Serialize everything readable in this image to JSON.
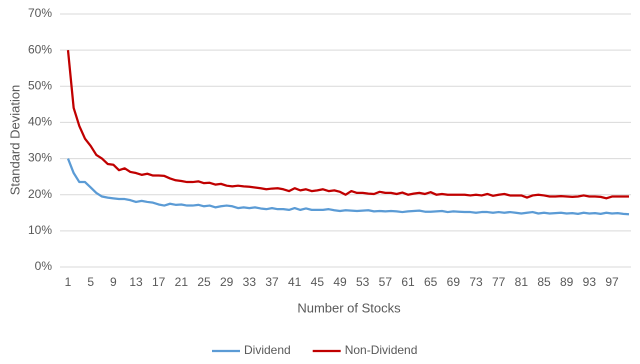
{
  "chart_data": {
    "type": "line",
    "x_label": "Number of Stocks",
    "y_label": "Standard Deviation",
    "x": [
      1,
      2,
      3,
      4,
      5,
      6,
      7,
      8,
      9,
      10,
      11,
      12,
      13,
      14,
      15,
      16,
      17,
      18,
      19,
      20,
      21,
      22,
      23,
      24,
      25,
      26,
      27,
      28,
      29,
      30,
      31,
      32,
      33,
      34,
      35,
      36,
      37,
      38,
      39,
      40,
      41,
      42,
      43,
      44,
      45,
      46,
      47,
      48,
      49,
      50,
      51,
      52,
      53,
      54,
      55,
      56,
      57,
      58,
      59,
      60,
      61,
      62,
      63,
      64,
      65,
      66,
      67,
      68,
      69,
      70,
      71,
      72,
      73,
      74,
      75,
      76,
      77,
      78,
      79,
      80,
      81,
      82,
      83,
      84,
      85,
      86,
      87,
      88,
      89,
      90,
      91,
      92,
      93,
      94,
      95,
      96,
      97,
      98,
      99,
      100
    ],
    "xlim": [
      1,
      100
    ],
    "xticks": [
      1,
      5,
      9,
      13,
      17,
      21,
      25,
      29,
      33,
      37,
      41,
      45,
      49,
      53,
      57,
      61,
      65,
      69,
      73,
      77,
      81,
      85,
      89,
      93,
      97
    ],
    "ylim": [
      0,
      70
    ],
    "yticks": [
      {
        "value": 0,
        "label": "0%"
      },
      {
        "value": 10,
        "label": "10%"
      },
      {
        "value": 20,
        "label": "20%"
      },
      {
        "value": 30,
        "label": "30%"
      },
      {
        "value": 40,
        "label": "40%"
      },
      {
        "value": 50,
        "label": "50%"
      },
      {
        "value": 60,
        "label": "60%"
      },
      {
        "value": 70,
        "label": "70%"
      }
    ],
    "grid": true,
    "legend": "bottom",
    "series": [
      {
        "name": "Dividend",
        "color": "#5b9bd5",
        "values": [
          30,
          26,
          23.5,
          23.5,
          22,
          20.5,
          19.5,
          19.2,
          19,
          18.8,
          18.8,
          18.5,
          18,
          18.3,
          18,
          17.8,
          17.3,
          17,
          17.5,
          17.2,
          17.3,
          17,
          17,
          17.2,
          16.8,
          17,
          16.5,
          16.8,
          17,
          16.8,
          16.3,
          16.5,
          16.3,
          16.5,
          16.2,
          16,
          16.3,
          16,
          16,
          15.8,
          16.3,
          15.8,
          16.2,
          15.8,
          15.8,
          15.8,
          16,
          15.7,
          15.5,
          15.7,
          15.6,
          15.5,
          15.6,
          15.7,
          15.4,
          15.5,
          15.4,
          15.5,
          15.4,
          15.2,
          15.4,
          15.5,
          15.6,
          15.3,
          15.3,
          15.4,
          15.5,
          15.2,
          15.4,
          15.3,
          15.2,
          15.2,
          15,
          15.2,
          15.2,
          15,
          15.2,
          15,
          15.2,
          15,
          14.8,
          15,
          15.2,
          14.8,
          15,
          14.8,
          14.9,
          15,
          14.8,
          14.9,
          14.7,
          15,
          14.8,
          14.9,
          14.7,
          15,
          14.8,
          14.9,
          14.7,
          14.6
        ]
      },
      {
        "name": "Non-Dividend",
        "color": "#c00000",
        "values": [
          60,
          44,
          39,
          35.5,
          33.5,
          31,
          30,
          28.5,
          28.3,
          26.8,
          27.3,
          26.3,
          26,
          25.5,
          25.8,
          25.3,
          25.3,
          25.2,
          24.5,
          24,
          23.8,
          23.5,
          23.5,
          23.7,
          23.2,
          23.3,
          22.8,
          23,
          22.5,
          22.3,
          22.5,
          22.3,
          22.2,
          22,
          21.8,
          21.5,
          21.7,
          21.8,
          21.5,
          21,
          21.8,
          21.2,
          21.5,
          21,
          21.2,
          21.5,
          21,
          21.2,
          20.8,
          20,
          21,
          20.5,
          20.5,
          20.3,
          20.2,
          20.8,
          20.5,
          20.5,
          20.2,
          20.6,
          20,
          20.3,
          20.5,
          20.2,
          20.7,
          20,
          20.2,
          20,
          20,
          20,
          20,
          19.8,
          20,
          19.8,
          20.2,
          19.7,
          20,
          20.2,
          19.8,
          19.8,
          19.8,
          19.2,
          19.8,
          20,
          19.8,
          19.5,
          19.5,
          19.6,
          19.5,
          19.4,
          19.5,
          19.8,
          19.5,
          19.5,
          19.4,
          19,
          19.5,
          19.5,
          19.5,
          19.5
        ]
      }
    ]
  }
}
